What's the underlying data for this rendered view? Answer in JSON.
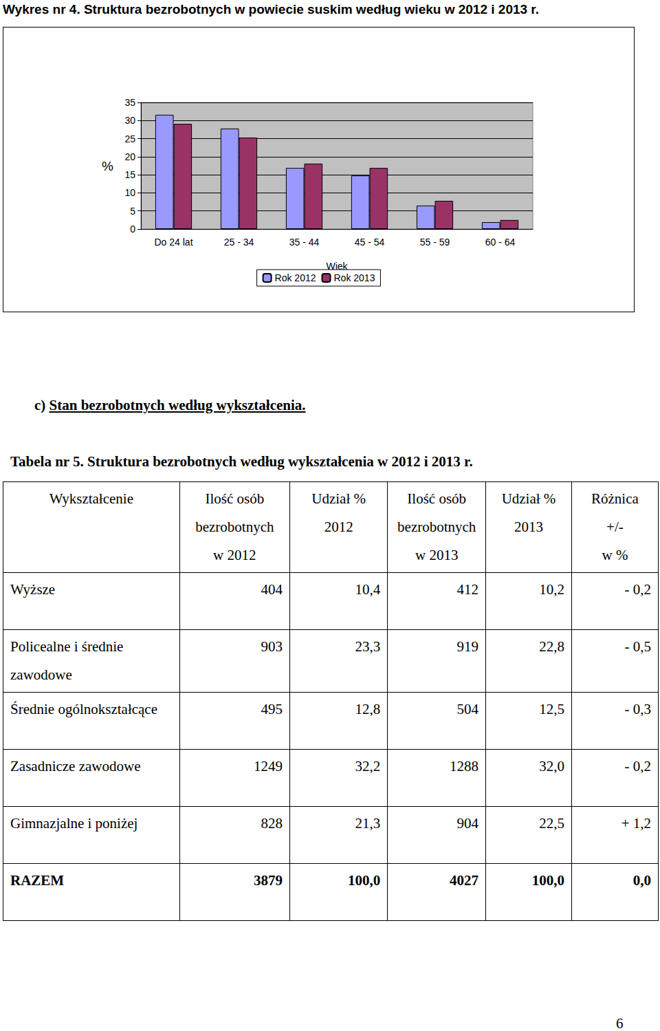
{
  "document": {
    "page_title": "Wykres nr 4. Struktura bezrobotnych w powiecie suskim według wieku w 2012 i 2013 r.",
    "section_heading": {
      "label": "c)",
      "text": "Stan bezrobotnych według wykształcenia."
    },
    "table_title": "Tabela nr 5. Struktura bezrobotnych według wykształcenia w 2012 i 2013 r.",
    "table": {
      "header": [
        [
          "Wykształcenie"
        ],
        [
          "Ilość osób",
          "bezrobotnych",
          "w 2012"
        ],
        [
          "Udział %",
          "2012"
        ],
        [
          "Ilość osób",
          "bezrobotnych",
          "w 2013"
        ],
        [
          "Udział %",
          "2013"
        ],
        [
          "Różnica",
          "+/-",
          "w %"
        ]
      ],
      "rows": [
        [
          "Wyższe",
          "404",
          "10,4",
          "412",
          "10,2",
          "- 0,2"
        ],
        [
          "Policealne i średnie zawodowe",
          "903",
          "23,3",
          "919",
          "22,8",
          "- 0,5"
        ],
        [
          "Średnie ogólnokształcące",
          "495",
          "12,8",
          "504",
          "12,5",
          "- 0,3"
        ],
        [
          "Zasadnicze zawodowe",
          "1249",
          "32,2",
          "1288",
          "32,0",
          "- 0,2"
        ],
        [
          "Gimnazjalne i poniżej",
          "828",
          "21,3",
          "904",
          "22,5",
          "+ 1,2"
        ],
        [
          "RAZEM",
          "3879",
          "100,0",
          "4027",
          "100,0",
          "0,0"
        ]
      ]
    },
    "page_number": "6"
  },
  "chart_data": {
    "type": "bar",
    "x_label": "Wiek",
    "y_label": "%",
    "categories": [
      "Do 24 lat",
      "25 - 34",
      "35 - 44",
      "45 - 54",
      "55 - 59",
      "60 - 64"
    ],
    "series": [
      {
        "name": "Rok 2012",
        "color": "#9999ff",
        "values": [
          31.6,
          27.8,
          16.9,
          14.8,
          6.5,
          1.9
        ]
      },
      {
        "name": "Rok 2013",
        "color": "#993366",
        "values": [
          29.1,
          25.3,
          18.1,
          16.9,
          7.8,
          2.5
        ]
      }
    ],
    "ylim": [
      0,
      35
    ],
    "yticks": [
      0,
      5,
      10,
      15,
      20,
      25,
      30,
      35
    ],
    "grid": true,
    "legend": "bottom"
  }
}
